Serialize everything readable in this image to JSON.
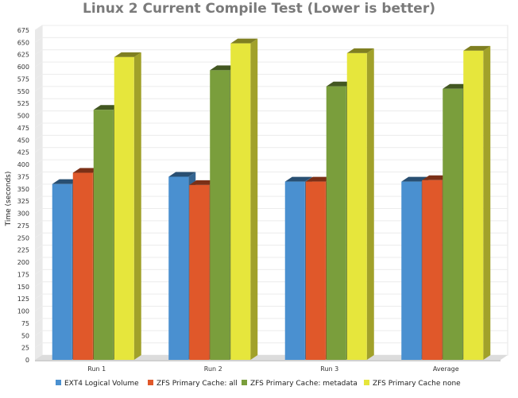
{
  "chart_data": {
    "type": "bar",
    "title": "Linux 2 Current Compile Test (Lower is better)",
    "xlabel": "",
    "ylabel": "Time (seconds)",
    "ylim": [
      0,
      675
    ],
    "ytick_step": 25,
    "categories": [
      "Run 1",
      "Run 2",
      "Run 3",
      "Average"
    ],
    "series": [
      {
        "name": "EXT4 Logical Volume",
        "values": [
          360,
          375,
          365,
          365
        ],
        "color": "#4a90d0"
      },
      {
        "name": "ZFS Primary Cache: all",
        "values": [
          383,
          358,
          365,
          368
        ],
        "color": "#e0582a"
      },
      {
        "name": "ZFS Primary Cache: metadata",
        "values": [
          512,
          593,
          560,
          555
        ],
        "color": "#7a9e3c"
      },
      {
        "name": "ZFS Primary Cache none",
        "values": [
          620,
          648,
          628,
          633
        ],
        "color": "#e6e63c"
      }
    ],
    "grid": true,
    "legend": "bottom",
    "style": "3d"
  }
}
